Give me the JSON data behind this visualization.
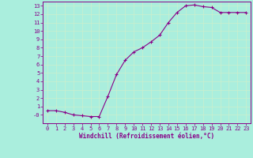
{
  "x": [
    0,
    1,
    2,
    3,
    4,
    5,
    6,
    7,
    8,
    9,
    10,
    11,
    12,
    13,
    14,
    15,
    16,
    17,
    18,
    19,
    20,
    21,
    22,
    23
  ],
  "y": [
    0.5,
    0.5,
    0.3,
    0.0,
    -0.1,
    -0.2,
    -0.2,
    2.2,
    4.8,
    6.5,
    7.5,
    8.0,
    8.7,
    9.5,
    11.0,
    12.2,
    13.0,
    13.1,
    12.9,
    12.8,
    12.2,
    12.2,
    12.2,
    12.2
  ],
  "xlabel": "Windchill (Refroidissement éolien,°C)",
  "bg_color": "#aaeedd",
  "grid_color": "#bbddcc",
  "line_color": "#880088",
  "xlim": [
    -0.5,
    23.5
  ],
  "ylim": [
    -1.0,
    13.5
  ],
  "yticks": [
    0,
    1,
    2,
    3,
    4,
    5,
    6,
    7,
    8,
    9,
    10,
    11,
    12,
    13
  ],
  "ytick_labels": [
    "-0",
    "1",
    "2",
    "3",
    "4",
    "5",
    "6",
    "7",
    "8",
    "9",
    "10",
    "11",
    "12",
    "13"
  ],
  "xticks": [
    0,
    1,
    2,
    3,
    4,
    5,
    6,
    7,
    8,
    9,
    10,
    11,
    12,
    13,
    14,
    15,
    16,
    17,
    18,
    19,
    20,
    21,
    22,
    23
  ]
}
